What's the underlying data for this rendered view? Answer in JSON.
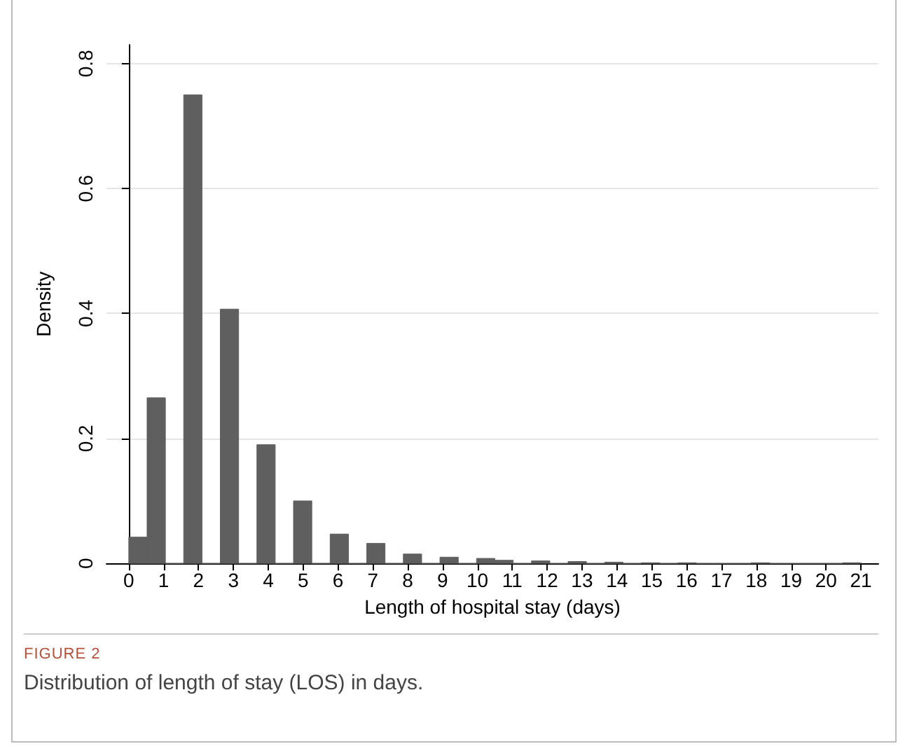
{
  "chart_data": {
    "type": "histogram",
    "xlabel": "Length of hospital stay (days)",
    "ylabel": "Density",
    "bins": [
      0,
      0.525,
      1.05,
      1.575,
      2.1,
      2.625,
      3.15,
      3.675,
      4.2,
      4.725,
      5.25,
      5.775,
      6.3,
      6.825,
      7.35,
      7.875,
      8.4,
      8.925,
      9.45,
      9.975,
      10.5,
      11.025,
      11.55,
      12.075,
      12.6,
      13.125,
      13.65,
      14.175,
      14.7,
      15.225,
      15.75,
      16.275,
      16.8,
      17.325,
      17.85,
      18.375,
      18.9,
      19.425,
      19.95,
      20.475,
      21
    ],
    "values": [
      0.042,
      0.265,
      0,
      0.75,
      0,
      0.407,
      0,
      0.19,
      0,
      0.1,
      0,
      0.047,
      0,
      0.032,
      0,
      0.015,
      0,
      0.01,
      0,
      0.008,
      0.005,
      0,
      0.004,
      0,
      0.003,
      0,
      0.002,
      0,
      0.001,
      0,
      0.001,
      0,
      0,
      0,
      0.001,
      0,
      0,
      0,
      0,
      0.001
    ],
    "color": "#5f5f5f",
    "xlim": [
      -0.64,
      21.5
    ],
    "xticks": [
      0,
      1,
      2,
      3,
      4,
      5,
      6,
      7,
      8,
      9,
      10,
      11,
      12,
      13,
      14,
      15,
      16,
      17,
      18,
      19,
      20,
      21
    ],
    "ylim": [
      0,
      0.83
    ],
    "yticks": [
      0,
      0.2,
      0.4,
      0.6,
      0.8
    ],
    "grid": "y",
    "annotations": [
      "FIGURE 2",
      "Distribution of length of stay (LOS) in days."
    ]
  }
}
